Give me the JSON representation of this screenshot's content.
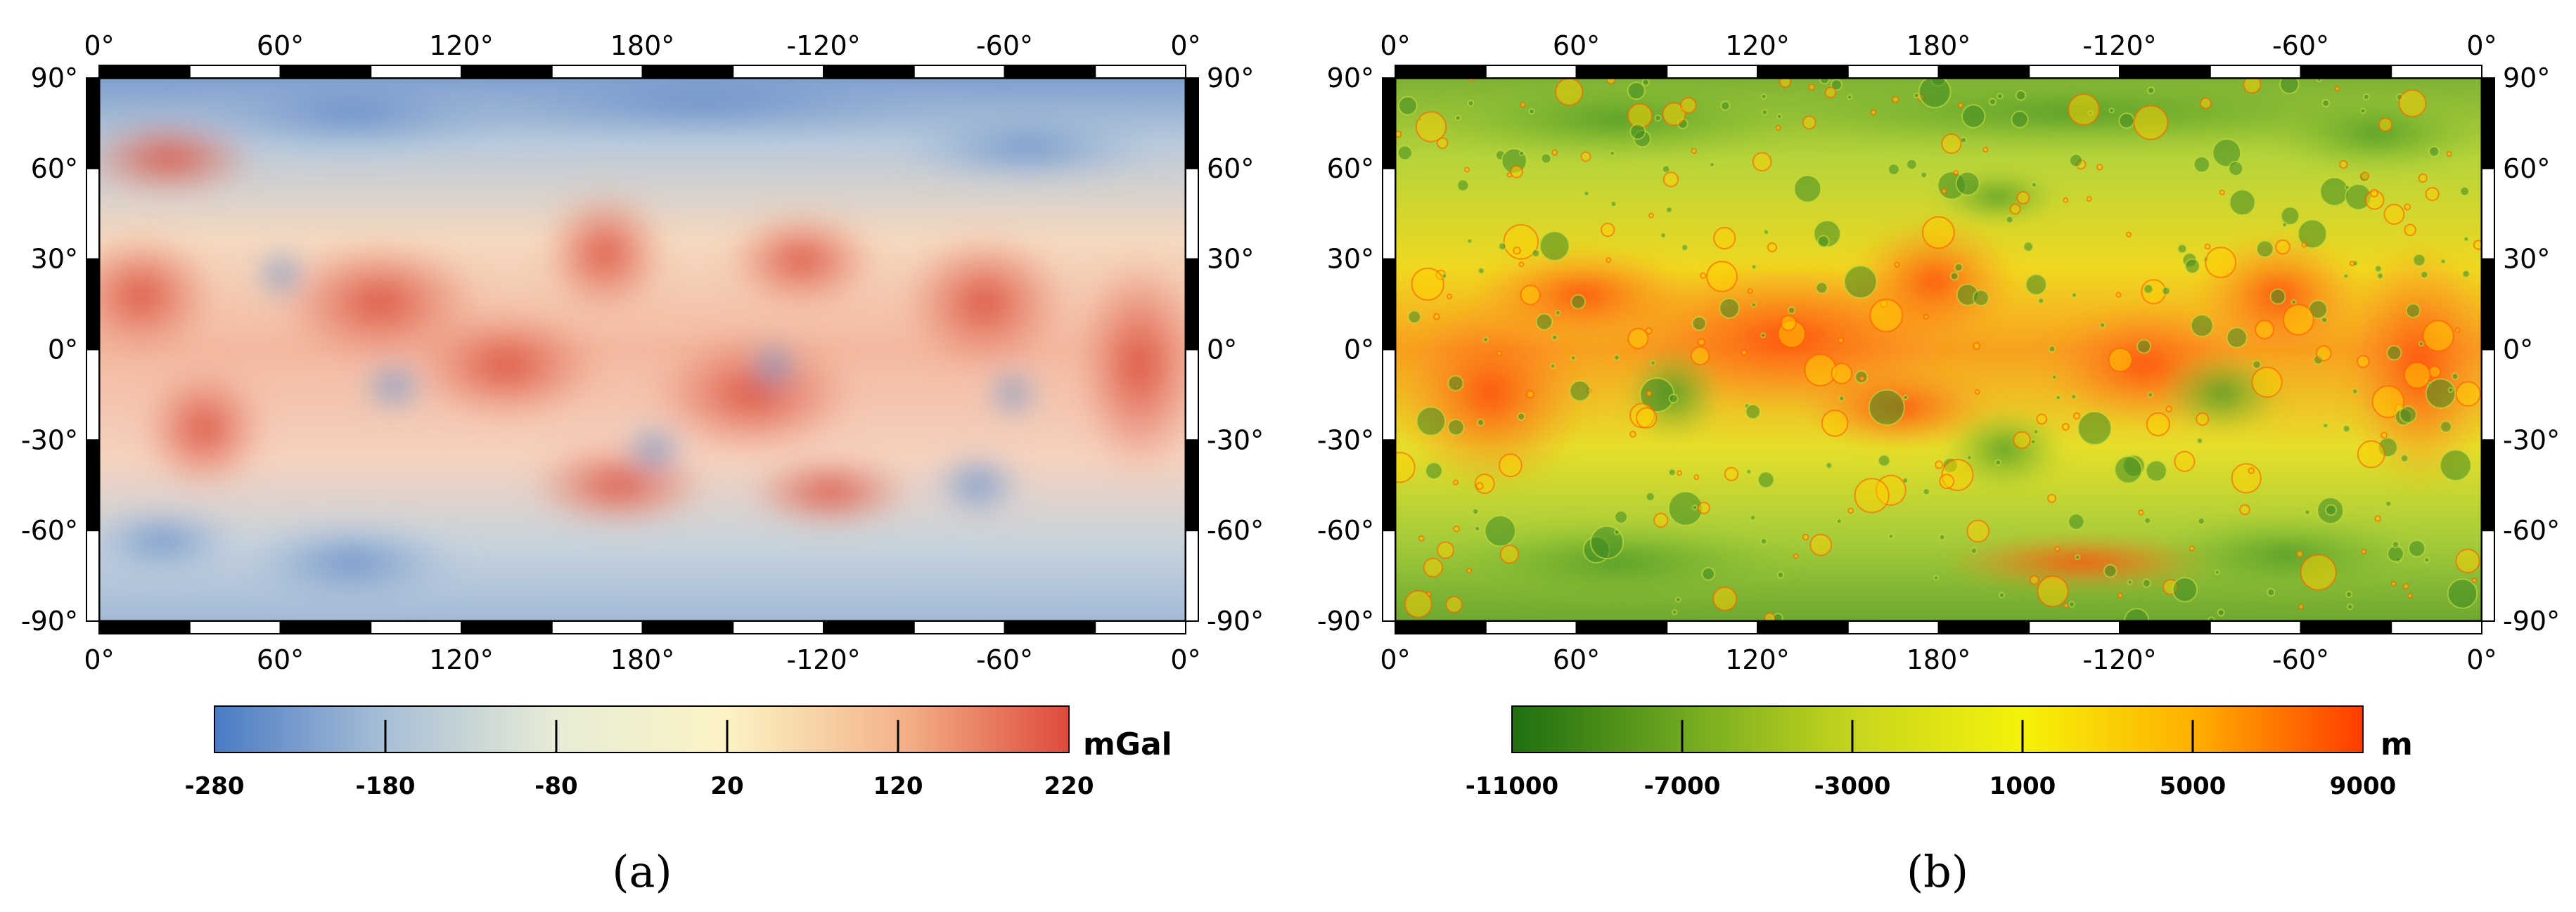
{
  "panels": [
    {
      "id": "a",
      "caption": "(a)",
      "lon_ticks": [
        "0°",
        "60°",
        "120°",
        "180°",
        "-120°",
        "-60°",
        "0°"
      ],
      "lat_ticks": [
        "90°",
        "60°",
        "30°",
        "0°",
        "-30°",
        "-60°",
        "-90°"
      ],
      "colorbar": {
        "unit": "mGal",
        "ticks": [
          "-280",
          "-180",
          "-80",
          "20",
          "120",
          "220"
        ],
        "range": [
          -280,
          220
        ],
        "colors": [
          "#4a7bc4",
          "#a8bfd6",
          "#e8ecd6",
          "#fbf3c3",
          "#f4b48c",
          "#de4a3c"
        ]
      }
    },
    {
      "id": "b",
      "caption": "(b)",
      "lon_ticks": [
        "0°",
        "60°",
        "120°",
        "180°",
        "-120°",
        "-60°",
        "0°"
      ],
      "lat_ticks": [
        "90°",
        "60°",
        "30°",
        "0°",
        "-30°",
        "-60°",
        "-90°"
      ],
      "colorbar": {
        "unit": "m",
        "ticks": [
          "-11000",
          "-7000",
          "-3000",
          "1000",
          "5000",
          "9000"
        ],
        "range": [
          -11000,
          9000
        ],
        "colors": [
          "#1f6e10",
          "#6fa820",
          "#c6d51e",
          "#f5f20a",
          "#ffb000",
          "#ff3c00"
        ]
      }
    }
  ]
}
